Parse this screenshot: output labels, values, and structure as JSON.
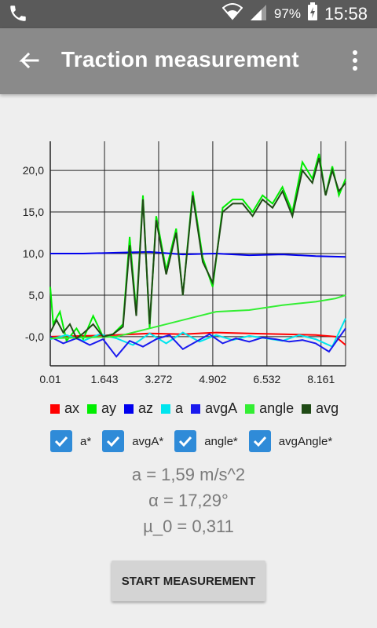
{
  "status_bar": {
    "battery": "97%",
    "time": "15:58"
  },
  "app_bar": {
    "title": "Traction measurement",
    "back_icon": "arrow-back-icon",
    "menu_icon": "more-vert-icon"
  },
  "chart_data": {
    "type": "line",
    "x_ticks": [
      "0.01",
      "1.643",
      "3.272",
      "4.902",
      "6.532",
      "8.161"
    ],
    "y_ticks": [
      "-0,0",
      "5,0",
      "10,0",
      "15,0",
      "20,0"
    ],
    "xlim": [
      0.01,
      8.9
    ],
    "ylim": [
      -3.5,
      23.5
    ],
    "grid": true,
    "series": [
      {
        "name": "ax",
        "color": "#ff0000",
        "x": [
          0.01,
          1.0,
          2.0,
          3.0,
          4.0,
          5.0,
          6.0,
          7.0,
          8.0,
          8.6,
          8.9
        ],
        "y": [
          0.0,
          0.1,
          0.2,
          0.4,
          0.3,
          0.5,
          0.4,
          0.3,
          0.2,
          0.0,
          -1.0
        ]
      },
      {
        "name": "ay",
        "color": "#00ee00",
        "x": [
          0.01,
          0.1,
          0.3,
          0.5,
          0.8,
          1.0,
          1.3,
          1.6,
          1.9,
          2.2,
          2.4,
          2.6,
          2.8,
          3.0,
          3.2,
          3.5,
          3.8,
          4.0,
          4.3,
          4.6,
          4.9,
          5.2,
          5.5,
          5.8,
          6.1,
          6.4,
          6.7,
          7.0,
          7.3,
          7.6,
          7.9,
          8.1,
          8.3,
          8.5,
          8.7,
          8.9
        ],
        "y": [
          6.0,
          1.5,
          3.0,
          -0.5,
          1.0,
          -0.3,
          2.5,
          0.0,
          0.3,
          1.5,
          12.0,
          3.0,
          17.0,
          1.0,
          14.5,
          8.0,
          13.0,
          5.0,
          17.5,
          9.5,
          6.0,
          15.5,
          16.5,
          16.5,
          15.0,
          17.0,
          16.0,
          18.0,
          15.0,
          21.0,
          19.0,
          22.0,
          17.0,
          20.5,
          17.0,
          19.0
        ]
      },
      {
        "name": "az",
        "color": "#0000ee",
        "x": [
          0.01,
          1.0,
          2.0,
          3.0,
          4.0,
          5.0,
          6.0,
          7.0,
          8.0,
          8.9
        ],
        "y": [
          10.0,
          10.0,
          10.1,
          10.2,
          9.9,
          10.0,
          9.8,
          9.9,
          9.7,
          9.6
        ]
      },
      {
        "name": "a",
        "color": "#00e5ee",
        "x": [
          0.01,
          0.5,
          1.0,
          1.5,
          2.0,
          2.5,
          3.0,
          3.5,
          4.0,
          4.5,
          5.0,
          5.5,
          6.0,
          6.5,
          7.0,
          7.5,
          8.0,
          8.5,
          8.9
        ],
        "y": [
          -0.3,
          0.2,
          -0.5,
          0.3,
          -0.2,
          -1.0,
          0.4,
          -0.8,
          0.5,
          -0.6,
          0.2,
          -0.4,
          0.1,
          -0.2,
          -0.5,
          0.2,
          -0.3,
          -1.2,
          2.2
        ]
      },
      {
        "name": "avgA",
        "color": "#1a1aee",
        "x": [
          0.01,
          0.4,
          0.8,
          1.2,
          1.6,
          2.0,
          2.4,
          2.8,
          3.2,
          3.6,
          4.0,
          4.4,
          4.8,
          5.2,
          5.6,
          6.0,
          6.4,
          6.8,
          7.2,
          7.6,
          8.0,
          8.4,
          8.9
        ],
        "y": [
          0.0,
          -0.8,
          -0.2,
          -1.0,
          -0.3,
          -2.4,
          -0.5,
          -1.2,
          -0.3,
          0.2,
          -1.5,
          -0.6,
          0.3,
          -0.8,
          -0.2,
          -0.6,
          -0.1,
          -0.3,
          -0.6,
          -0.4,
          -0.8,
          -1.8,
          1.0
        ]
      },
      {
        "name": "angle",
        "color": "#33ee33",
        "x": [
          0.01,
          1.0,
          2.0,
          3.0,
          4.0,
          5.0,
          6.0,
          7.0,
          8.0,
          8.6,
          8.9
        ],
        "y": [
          -0.2,
          -0.1,
          0.0,
          1.0,
          2.0,
          3.0,
          3.2,
          3.8,
          4.2,
          4.6,
          5.0
        ]
      },
      {
        "name": "avgAngle",
        "color": "#1f4a15",
        "x": [
          0.01,
          0.2,
          0.4,
          0.6,
          0.8,
          1.0,
          1.3,
          1.6,
          1.9,
          2.2,
          2.4,
          2.6,
          2.8,
          3.0,
          3.2,
          3.5,
          3.8,
          4.0,
          4.3,
          4.6,
          4.9,
          5.2,
          5.5,
          5.8,
          6.1,
          6.4,
          6.7,
          7.0,
          7.3,
          7.6,
          7.9,
          8.1,
          8.3,
          8.5,
          8.7,
          8.9
        ],
        "y": [
          0.5,
          2.0,
          0.5,
          1.5,
          -0.2,
          0.4,
          1.5,
          0.0,
          0.3,
          1.2,
          11.0,
          2.5,
          16.5,
          1.5,
          14.0,
          7.5,
          12.5,
          5.0,
          17.0,
          9.0,
          6.5,
          15.0,
          16.0,
          16.0,
          14.5,
          16.5,
          15.5,
          17.5,
          14.5,
          20.0,
          18.5,
          21.5,
          17.0,
          20.0,
          17.5,
          18.5
        ]
      }
    ]
  },
  "legend": [
    {
      "label": "ax",
      "color": "#ff0000"
    },
    {
      "label": "ay",
      "color": "#00ee00"
    },
    {
      "label": "az",
      "color": "#0000ee"
    },
    {
      "label": "a",
      "color": "#00e5ee"
    },
    {
      "label": "avgA",
      "color": "#1a1aee"
    },
    {
      "label": "angle",
      "color": "#33ee33"
    },
    {
      "label": "avg",
      "color": "#1f4a15"
    }
  ],
  "checkboxes": [
    {
      "label": "a*",
      "checked": true
    },
    {
      "label": "avgA*",
      "checked": true
    },
    {
      "label": "angle*",
      "checked": true
    },
    {
      "label": "avgAngle*",
      "checked": true
    }
  ],
  "metrics": {
    "acceleration": "a = 1,59 m/s^2",
    "angle": "α = 17,29°",
    "mu": "µ_0 = 0,311"
  },
  "start_button": "START MEASUREMENT"
}
